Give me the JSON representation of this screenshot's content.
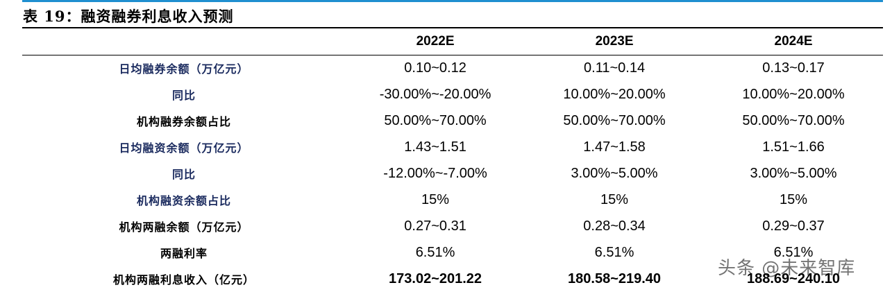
{
  "title": "表 19：融资融券利息收入预测",
  "columns": [
    "",
    "2022E",
    "2023E",
    "2024E"
  ],
  "rows": [
    {
      "label": "日均融券余额（万亿元）",
      "values": [
        "0.10~0.12",
        "0.11~0.14",
        "0.13~0.17"
      ]
    },
    {
      "label": "同比",
      "values": [
        "-30.00%~-20.00%",
        "10.00%~20.00%",
        "10.00%~20.00%"
      ]
    },
    {
      "label": "机构融券余额占比",
      "values": [
        "50.00%~70.00%",
        "50.00%~70.00%",
        "50.00%~70.00%"
      ]
    },
    {
      "label": "日均融资余额（万亿元）",
      "values": [
        "1.43~1.51",
        "1.47~1.58",
        "1.51~1.66"
      ]
    },
    {
      "label": "同比",
      "values": [
        "-12.00%~-7.00%",
        "3.00%~5.00%",
        "3.00%~5.00%"
      ]
    },
    {
      "label": "机构融资余额占比",
      "values": [
        "15%",
        "15%",
        "15%"
      ]
    },
    {
      "label": "机构两融余额（万亿元）",
      "values": [
        "0.27~0.31",
        "0.28~0.34",
        "0.29~0.37"
      ]
    },
    {
      "label": "两融利率",
      "values": [
        "6.51%",
        "6.51%",
        "6.51%"
      ]
    },
    {
      "label": "机构两融利息收入（亿元）",
      "values": [
        "173.02~201.22",
        "180.58~219.40",
        "188.69~240.10"
      ]
    }
  ],
  "watermark": "头条 @未来智库"
}
